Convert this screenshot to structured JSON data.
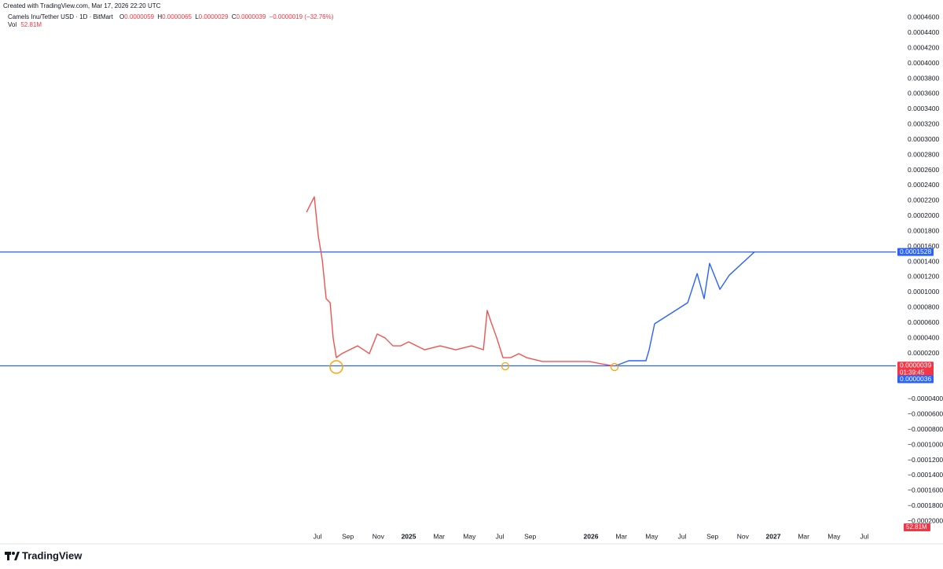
{
  "header": {
    "created": "Created with TradingView.com, Mar 17, 2026 22:20 UTC"
  },
  "legend": {
    "symbol": "Camels Inu/Tether USD · 1D · BitMart",
    "ohlc": [
      {
        "label": "O",
        "value": "0.0000059"
      },
      {
        "label": "H",
        "value": "0.0000065"
      },
      {
        "label": "L",
        "value": "0.0000029"
      },
      {
        "label": "C",
        "value": "0.0000039"
      }
    ],
    "change": "−0.0000019 (−32.76%)",
    "volume_label": "Vol",
    "volume": "52.81M"
  },
  "chart_data": {
    "type": "line",
    "xlim": [
      -26.9,
      32.07
    ],
    "ylim": [
      -0.000207,
      0.000483
    ],
    "xticks": [
      {
        "value": -6,
        "label": "Jul"
      },
      {
        "value": -4,
        "label": "Sep"
      },
      {
        "value": -2,
        "label": "Nov"
      },
      {
        "value": 0,
        "label": "2025"
      },
      {
        "value": 2,
        "label": "Mar"
      },
      {
        "value": 4,
        "label": "May"
      },
      {
        "value": 6,
        "label": "Jul"
      },
      {
        "value": 8,
        "label": "Sep"
      },
      {
        "value": 12,
        "label": "2026"
      },
      {
        "value": 14,
        "label": "Mar"
      },
      {
        "value": 16,
        "label": "May"
      },
      {
        "value": 18,
        "label": "Jul"
      },
      {
        "value": 20,
        "label": "Sep"
      },
      {
        "value": 22,
        "label": "Nov"
      },
      {
        "value": 24,
        "label": "2027"
      },
      {
        "value": 26,
        "label": "Mar"
      },
      {
        "value": 28,
        "label": "May"
      },
      {
        "value": 30,
        "label": "Jul"
      }
    ],
    "yticks": [
      {
        "value": 0.00046,
        "label": "0.0004600"
      },
      {
        "value": 0.00044,
        "label": "0.0004400"
      },
      {
        "value": 0.00042,
        "label": "0.0004200"
      },
      {
        "value": 0.0004,
        "label": "0.0004000"
      },
      {
        "value": 0.00038,
        "label": "0.0003800"
      },
      {
        "value": 0.00036,
        "label": "0.0003600"
      },
      {
        "value": 0.00034,
        "label": "0.0003400"
      },
      {
        "value": 0.00032,
        "label": "0.0003200"
      },
      {
        "value": 0.0003,
        "label": "0.0003000"
      },
      {
        "value": 0.00028,
        "label": "0.0002800"
      },
      {
        "value": 0.00026,
        "label": "0.0002600"
      },
      {
        "value": 0.00024,
        "label": "0.0002400"
      },
      {
        "value": 0.00022,
        "label": "0.0002200"
      },
      {
        "value": 0.0002,
        "label": "0.0002000"
      },
      {
        "value": 0.00018,
        "label": "0.0001800"
      },
      {
        "value": 0.00016,
        "label": "0.0001600"
      },
      {
        "value": 0.00014,
        "label": "0.0001400"
      },
      {
        "value": 0.00012,
        "label": "0.0001200"
      },
      {
        "value": 0.0001,
        "label": "0.0001000"
      },
      {
        "value": 8e-05,
        "label": "0.0000800"
      },
      {
        "value": 6e-05,
        "label": "0.0000600"
      },
      {
        "value": 4e-05,
        "label": "0.0000400"
      },
      {
        "value": 2e-05,
        "label": "0.0000200"
      },
      {
        "value": -4e-05,
        "label": "−0.0000400"
      },
      {
        "value": -6e-05,
        "label": "−0.0000600"
      },
      {
        "value": -8e-05,
        "label": "−0.0000800"
      },
      {
        "value": -0.0001,
        "label": "−0.0001000"
      },
      {
        "value": -0.00012,
        "label": "−0.0001200"
      },
      {
        "value": -0.00014,
        "label": "−0.0001400"
      },
      {
        "value": -0.00016,
        "label": "−0.0001600"
      },
      {
        "value": -0.00018,
        "label": "−0.0001800"
      },
      {
        "value": -0.0002,
        "label": "−0.0002000"
      }
    ],
    "grid": false,
    "series": [
      {
        "color": "#ef5350",
        "x": [
          -6.72,
          -6.47,
          -6.21,
          -5.95,
          -5.69,
          -5.43,
          -5.17,
          -4.97,
          -4.76,
          -4.4,
          -3.88,
          -3.36,
          -2.59,
          -2.07,
          -1.55,
          -1.03,
          -0.52,
          0,
          1.04,
          2.07,
          3.1,
          4.14,
          4.92,
          5.17,
          5.43,
          5.8,
          6.21,
          6.73,
          7.25,
          7.76,
          8.8,
          9.83,
          10.87,
          11.9,
          12.68,
          13.45
        ],
        "values": [
          0.000205,
          0.000215,
          0.000225,
          0.000174,
          0.000143,
          9.16e-05,
          8.64e-05,
          4.01e-05,
          1.44e-05,
          1.96e-05,
          2.47e-05,
          2.98e-05,
          1.96e-05,
          4.53e-05,
          4.01e-05,
          2.98e-05,
          2.98e-05,
          3.5e-05,
          2.47e-05,
          2.98e-05,
          2.47e-05,
          2.98e-05,
          2.47e-05,
          7.62e-05,
          6.07e-05,
          4.01e-05,
          1.44e-05,
          1.44e-05,
          1.96e-05,
          1.44e-05,
          9.3e-06,
          9.3e-06,
          9.3e-06,
          9.3e-06,
          6.2e-06,
          3.6e-06
        ]
      },
      {
        "color": "#2962ff",
        "x": [
          13.61,
          14.49,
          15.62,
          15.83,
          16.19,
          18.37,
          18.99,
          19.45,
          19.81,
          20.49,
          21.11,
          22.76
        ],
        "values": [
          3.6e-06,
          1.03e-05,
          1.03e-05,
          2.47e-05,
          5.87e-05,
          8.64e-05,
          0.0001245,
          9.16e-05,
          0.0001379,
          0.0001039,
          0.0001225,
          0.0001528
        ]
      }
    ],
    "hlines": [
      {
        "value": 0.0001528,
        "color": "#2962ff"
      },
      {
        "value": 3.6e-06,
        "color": "#2962ff"
      }
    ],
    "last_price": {
      "value": 3.9e-06,
      "color": "#f23645",
      "countdown": "01:39:45"
    },
    "volume_badge": "52.81M"
  },
  "footer": {
    "brand": "TradingView"
  }
}
